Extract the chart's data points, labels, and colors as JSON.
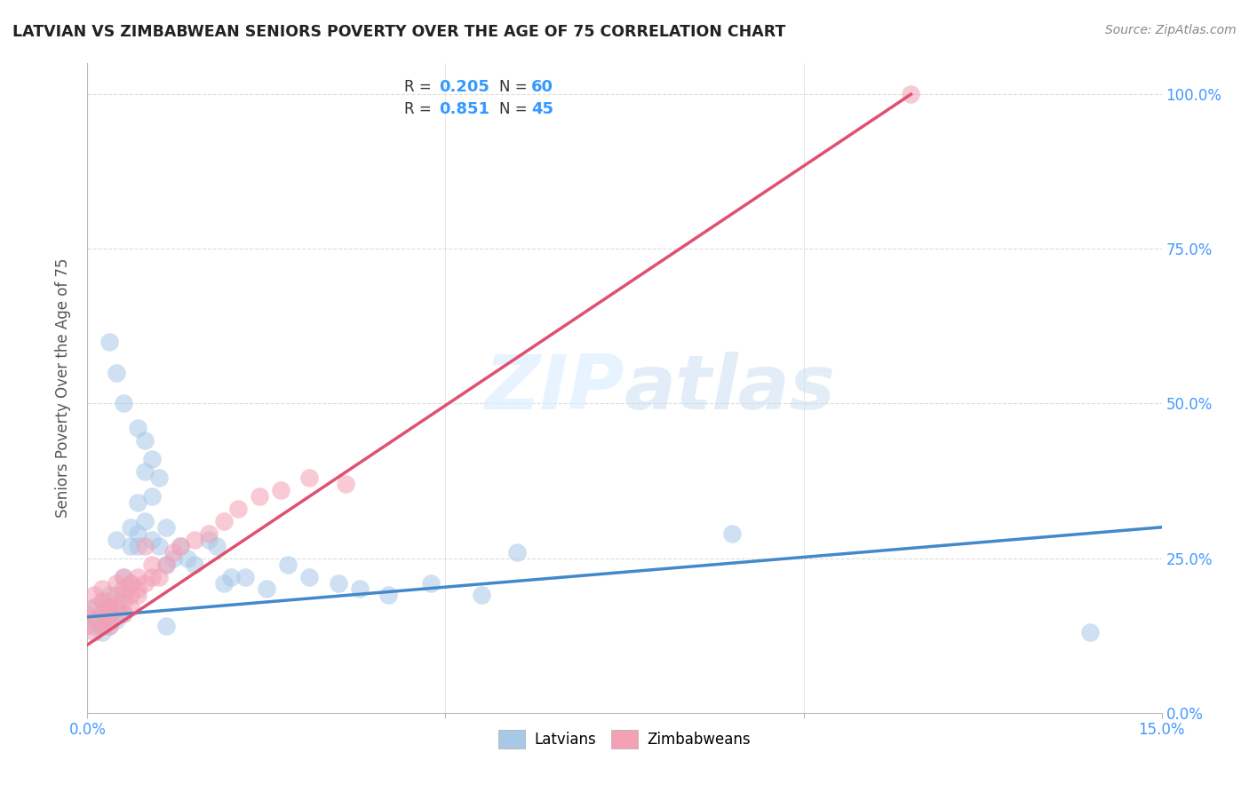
{
  "title": "LATVIAN VS ZIMBABWEAN SENIORS POVERTY OVER THE AGE OF 75 CORRELATION CHART",
  "source": "Source: ZipAtlas.com",
  "ylabel": "Seniors Poverty Over the Age of 75",
  "xmin": 0.0,
  "xmax": 0.15,
  "ymin": 0.0,
  "ymax": 1.05,
  "latvian_color": "#a8c8e8",
  "zimbabwean_color": "#f4a0b5",
  "latvian_line_color": "#4488cc",
  "zimbabwean_line_color": "#e05070",
  "tick_color": "#4499ff",
  "ylabel_color": "#555555",
  "title_color": "#222222",
  "source_color": "#888888",
  "watermark_color": "#ddeeff",
  "grid_color": "#dddddd",
  "legend_box_color": "#cccccc",
  "legend_text_color": "#333333",
  "legend_val_color": "#3399ff",
  "r1_val": "0.205",
  "n1_val": "60",
  "r2_val": "0.851",
  "n2_val": "45",
  "lv_x": [
    0.001,
    0.001,
    0.001,
    0.002,
    0.002,
    0.002,
    0.002,
    0.003,
    0.003,
    0.003,
    0.003,
    0.003,
    0.003,
    0.004,
    0.004,
    0.004,
    0.005,
    0.005,
    0.005,
    0.006,
    0.006,
    0.006,
    0.007,
    0.007,
    0.007,
    0.008,
    0.008,
    0.009,
    0.009,
    0.01,
    0.011,
    0.011,
    0.012,
    0.013,
    0.014,
    0.015,
    0.017,
    0.018,
    0.019,
    0.02,
    0.022,
    0.025,
    0.028,
    0.031,
    0.035,
    0.038,
    0.042,
    0.048,
    0.055,
    0.06,
    0.003,
    0.004,
    0.005,
    0.007,
    0.008,
    0.009,
    0.01,
    0.011,
    0.09,
    0.14
  ],
  "lv_y": [
    0.14,
    0.15,
    0.17,
    0.13,
    0.16,
    0.14,
    0.18,
    0.16,
    0.17,
    0.15,
    0.19,
    0.17,
    0.14,
    0.17,
    0.28,
    0.15,
    0.22,
    0.19,
    0.16,
    0.3,
    0.27,
    0.21,
    0.27,
    0.29,
    0.34,
    0.31,
    0.39,
    0.35,
    0.28,
    0.27,
    0.3,
    0.24,
    0.25,
    0.27,
    0.25,
    0.24,
    0.28,
    0.27,
    0.21,
    0.22,
    0.22,
    0.2,
    0.24,
    0.22,
    0.21,
    0.2,
    0.19,
    0.21,
    0.19,
    0.26,
    0.6,
    0.55,
    0.5,
    0.46,
    0.44,
    0.41,
    0.38,
    0.14,
    0.29,
    0.13
  ],
  "zw_x": [
    0.0,
    0.0,
    0.001,
    0.001,
    0.001,
    0.001,
    0.002,
    0.002,
    0.002,
    0.002,
    0.003,
    0.003,
    0.003,
    0.003,
    0.003,
    0.004,
    0.004,
    0.004,
    0.005,
    0.005,
    0.005,
    0.005,
    0.006,
    0.006,
    0.006,
    0.007,
    0.007,
    0.007,
    0.008,
    0.008,
    0.009,
    0.009,
    0.01,
    0.011,
    0.012,
    0.013,
    0.015,
    0.017,
    0.019,
    0.021,
    0.024,
    0.027,
    0.031,
    0.036,
    0.115
  ],
  "zw_y": [
    0.14,
    0.16,
    0.13,
    0.15,
    0.17,
    0.19,
    0.14,
    0.16,
    0.18,
    0.2,
    0.14,
    0.15,
    0.17,
    0.18,
    0.16,
    0.17,
    0.19,
    0.21,
    0.18,
    0.2,
    0.22,
    0.16,
    0.19,
    0.21,
    0.17,
    0.2,
    0.22,
    0.19,
    0.21,
    0.27,
    0.22,
    0.24,
    0.22,
    0.24,
    0.26,
    0.27,
    0.28,
    0.29,
    0.31,
    0.33,
    0.35,
    0.36,
    0.38,
    0.37,
    1.0
  ],
  "lv_line_x": [
    0.0,
    0.15
  ],
  "lv_line_y": [
    0.155,
    0.3
  ],
  "zw_line_x": [
    0.0,
    0.115
  ],
  "zw_line_y": [
    0.11,
    1.0
  ]
}
